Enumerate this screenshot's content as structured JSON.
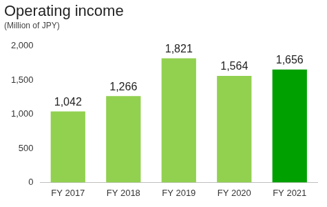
{
  "chart_data": {
    "type": "bar",
    "title": "Operating income",
    "subtitle": "(Million of JPY)",
    "categories": [
      "FY 2017",
      "FY 2018",
      "FY 2019",
      "FY 2020",
      "FY 2021"
    ],
    "values": [
      1042,
      1266,
      1821,
      1564,
      1656
    ],
    "value_labels": [
      "1,042",
      "1,266",
      "1,821",
      "1,564",
      "1,656"
    ],
    "colors": [
      "#92d050",
      "#92d050",
      "#92d050",
      "#92d050",
      "#00a000"
    ],
    "ylim": [
      0,
      2000
    ],
    "yticks": [
      0,
      500,
      {
        "value": 1000,
        "label": "1,000"
      },
      {
        "value": 1500,
        "label": "1,500"
      },
      {
        "value": 2000,
        "label": "2,000"
      }
    ],
    "grid": false,
    "data_labels": true
  }
}
